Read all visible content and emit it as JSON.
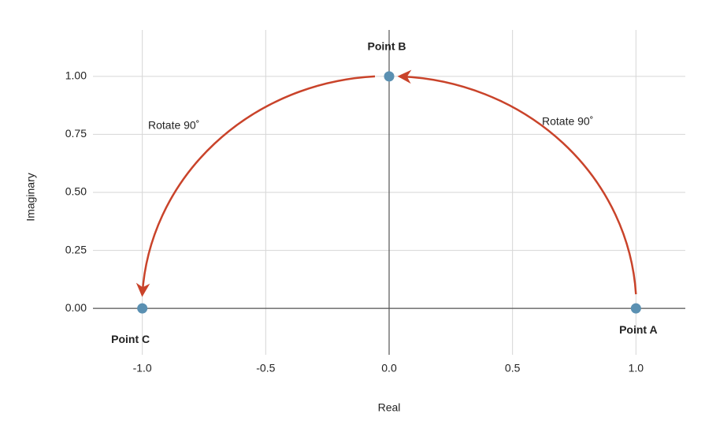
{
  "chart_data": {
    "type": "scatter",
    "x_label": "Real",
    "y_label": "Imaginary",
    "x": [
      1,
      0,
      -1
    ],
    "series": [
      {
        "color": "#5a90b2",
        "values": [
          0,
          1,
          0
        ]
      }
    ],
    "point_labels": [
      "Point A",
      "Point B",
      "Point C"
    ],
    "annotations": [
      "Rotate 90˚",
      "Rotate 90˚"
    ],
    "arrow_color": "#c9432a",
    "xlim": [
      -1.2,
      1.2
    ],
    "xticks": [
      {
        "value": -1,
        "label": "-1.0"
      },
      {
        "value": -0.5,
        "label": "-0.5"
      },
      {
        "value": 0,
        "label": "0.0"
      },
      {
        "value": 0.5,
        "label": "0.5"
      },
      {
        "value": 1,
        "label": "1.0"
      }
    ],
    "ylim": [
      -0.2,
      1.2
    ],
    "yticks": [
      {
        "value": 0,
        "label": "0.00"
      },
      {
        "value": 0.25,
        "label": "0.25"
      },
      {
        "value": 0.5,
        "label": "0.50"
      },
      {
        "value": 0.75,
        "label": "0.75"
      },
      {
        "value": 1,
        "label": "1.00"
      }
    ],
    "grid": true
  }
}
